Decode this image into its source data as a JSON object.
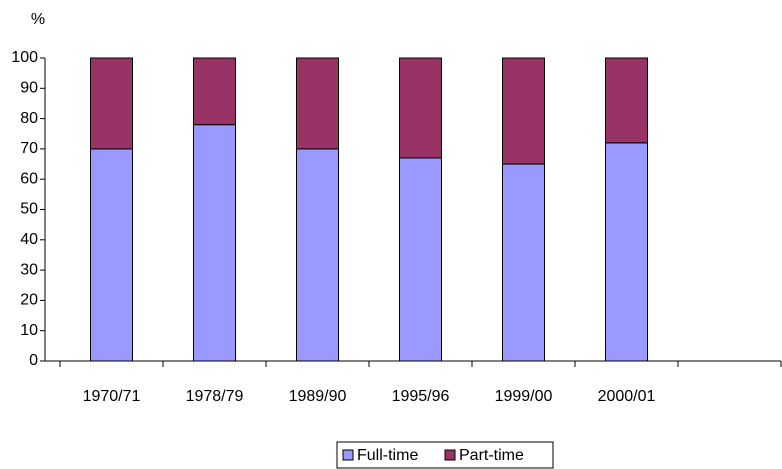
{
  "chart_data": {
    "type": "stacked_bar",
    "y_label": "%",
    "categories": [
      "1970/71",
      "1978/79",
      "1989/90",
      "1995/96",
      "1999/00",
      "2000/01",
      null
    ],
    "series": [
      {
        "name": "Full-time",
        "color": "#9999ff",
        "values": [
          70,
          78,
          70,
          67,
          65,
          72,
          null
        ]
      },
      {
        "name": "Part-time",
        "color": "#993366",
        "values": [
          30,
          22,
          30,
          33,
          35,
          28,
          null
        ]
      }
    ],
    "ylim": [
      0,
      100
    ],
    "yticks": [
      0,
      10,
      20,
      30,
      40,
      50,
      60,
      70,
      80,
      90,
      100
    ],
    "grid": false,
    "legend": "bottom"
  }
}
